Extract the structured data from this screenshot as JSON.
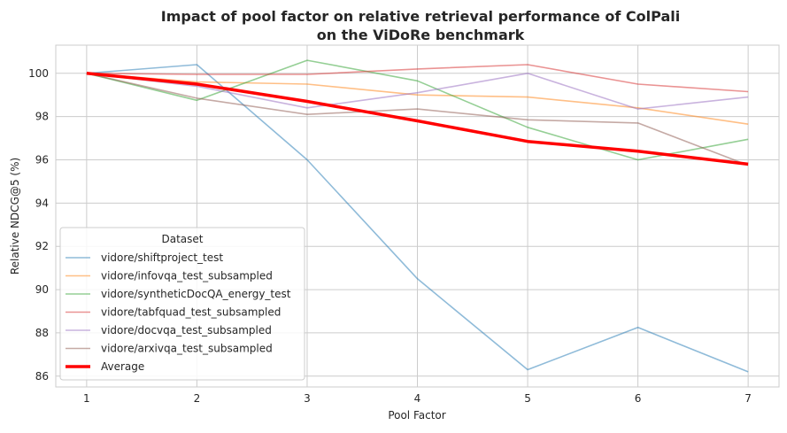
{
  "chart_data": {
    "type": "line",
    "title_line1": "Impact of pool factor on relative retrieval performance of ColPali",
    "title_line2": "on the ViDoRe benchmark",
    "xlabel": "Pool Factor",
    "ylabel": "Relative NDCG@5 (%)",
    "x": [
      1,
      2,
      3,
      4,
      5,
      6,
      7
    ],
    "xlim": [
      0.72,
      7.28
    ],
    "ylim": [
      85.5,
      101.3
    ],
    "yticks": [
      86,
      88,
      90,
      92,
      94,
      96,
      98,
      100
    ],
    "grid": true,
    "legend_title": "Dataset",
    "legend_position": "lower-left",
    "series": [
      {
        "name": "vidore/shiftproject_test",
        "color": "#1f77b4",
        "values": [
          100.0,
          100.4,
          96.0,
          90.5,
          86.3,
          88.25,
          86.2
        ]
      },
      {
        "name": "vidore/infovqa_test_subsampled",
        "color": "#ff7f0e",
        "values": [
          100.0,
          99.6,
          99.5,
          99.0,
          98.9,
          98.4,
          97.65
        ]
      },
      {
        "name": "vidore/syntheticDocQA_energy_test",
        "color": "#2ca02c",
        "values": [
          100.0,
          98.75,
          100.6,
          99.65,
          97.5,
          96.0,
          96.95
        ]
      },
      {
        "name": "vidore/tabfquad_test_subsampled",
        "color": "#d62728",
        "values": [
          100.0,
          99.95,
          99.95,
          100.2,
          100.4,
          99.5,
          99.15
        ]
      },
      {
        "name": "vidore/docvqa_test_subsampled",
        "color": "#9467bd",
        "values": [
          100.0,
          99.4,
          98.4,
          99.1,
          100.0,
          98.35,
          98.9
        ]
      },
      {
        "name": "vidore/arxivqa_test_subsampled",
        "color": "#8c564b",
        "values": [
          100.0,
          98.85,
          98.1,
          98.35,
          97.85,
          97.7,
          95.75
        ]
      },
      {
        "name": "Average",
        "color": "#ff0000",
        "bold": true,
        "values": [
          100.0,
          99.5,
          98.7,
          97.8,
          96.85,
          96.4,
          95.8
        ]
      }
    ]
  }
}
